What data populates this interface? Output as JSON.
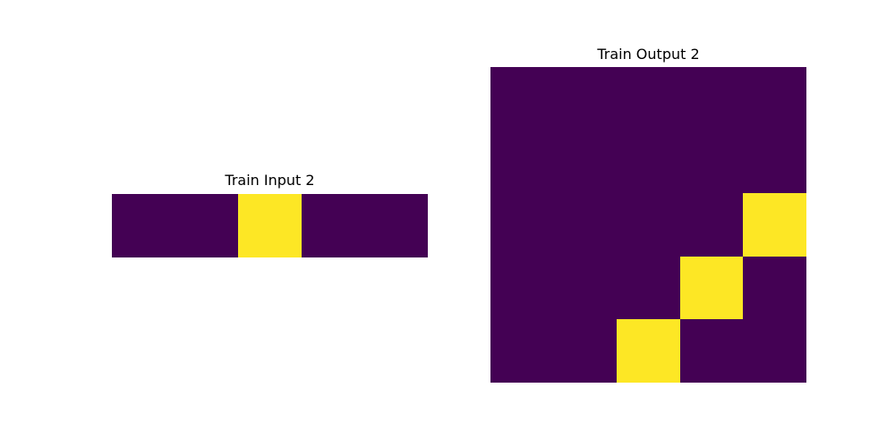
{
  "colors": {
    "0": "#440154",
    "1": "#fde725"
  },
  "input": {
    "title": "Train Input 2",
    "grid": [
      [
        0,
        0,
        1,
        0,
        0
      ]
    ]
  },
  "output": {
    "title": "Train Output 2",
    "grid": [
      [
        0,
        0,
        0,
        0,
        0
      ],
      [
        0,
        0,
        0,
        0,
        0
      ],
      [
        0,
        0,
        0,
        0,
        1
      ],
      [
        0,
        0,
        0,
        1,
        0
      ],
      [
        0,
        0,
        1,
        0,
        0
      ]
    ]
  }
}
